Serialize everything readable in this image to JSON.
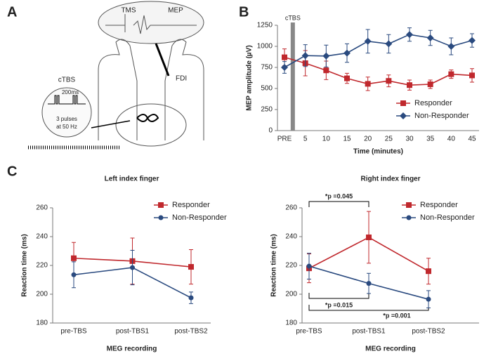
{
  "panel_labels": [
    "A",
    "B",
    "C"
  ],
  "diagram": {
    "tms": "TMS",
    "mep": "MEP",
    "fdi": "FDI",
    "ctbs": "cTBS",
    "interval": "200ms",
    "pulses": "3 pulses",
    "frequency": "at 50 Hz"
  },
  "chart_data": [
    {
      "type": "line",
      "annotations": [
        "cTBS"
      ],
      "x_label": "Time (minutes)",
      "y_label": "MEP amplitude (µV)",
      "categories": [
        "PRE",
        "5",
        "10",
        "15",
        "20",
        "25",
        "30",
        "35",
        "40",
        "45"
      ],
      "ylim": [
        0,
        1250
      ],
      "yticks": [
        0,
        250,
        500,
        750,
        1000,
        1250
      ],
      "legend": "lower right",
      "series": [
        {
          "name": "Responder",
          "color": "#c0282d",
          "marker": "square",
          "values": [
            870,
            800,
            715,
            620,
            555,
            590,
            540,
            550,
            670,
            655
          ],
          "errors": [
            100,
            150,
            110,
            60,
            80,
            70,
            60,
            50,
            50,
            80
          ]
        },
        {
          "name": "Non-Responder",
          "color": "#2a4a7f",
          "marker": "diamond",
          "values": [
            750,
            890,
            885,
            920,
            1060,
            1030,
            1140,
            1100,
            1000,
            1070
          ],
          "errors": [
            70,
            130,
            130,
            110,
            140,
            110,
            80,
            90,
            100,
            80
          ]
        }
      ]
    },
    {
      "type": "line",
      "title": "Left index finger",
      "x_label": "MEG recording",
      "y_label": "Reaction time (ms)",
      "categories": [
        "pre-TBS",
        "post-TBS1",
        "post-TBS2"
      ],
      "ylim": [
        180,
        260
      ],
      "yticks": [
        180,
        200,
        220,
        240,
        260
      ],
      "legend": "upper right",
      "series": [
        {
          "name": "Responder",
          "color": "#c0282d",
          "marker": "square",
          "values": [
            225,
            223,
            219
          ],
          "errors": [
            11,
            16,
            12
          ]
        },
        {
          "name": "Non-Responder",
          "color": "#2a4a7f",
          "marker": "circle",
          "values": [
            213.5,
            218.5,
            197.5
          ],
          "errors": [
            9,
            12,
            4
          ]
        }
      ]
    },
    {
      "type": "line",
      "title": "Right index finger",
      "x_label": "MEG recording",
      "y_label": "Reaction time (ms)",
      "categories": [
        "pre-TBS",
        "post-TBS1",
        "post-TBS2"
      ],
      "ylim": [
        180,
        260
      ],
      "yticks": [
        180,
        200,
        220,
        240,
        260
      ],
      "legend": "upper right",
      "annotations": [
        "*p =0.045",
        "*p =0.015",
        "*p =0.001"
      ],
      "series": [
        {
          "name": "Responder",
          "color": "#c0282d",
          "marker": "square",
          "values": [
            218,
            239.5,
            216
          ],
          "errors": [
            10,
            18,
            9
          ]
        },
        {
          "name": "Non-Responder",
          "color": "#2a4a7f",
          "marker": "circle",
          "values": [
            219.5,
            207.5,
            196.5
          ],
          "errors": [
            9,
            7,
            6
          ]
        }
      ]
    }
  ]
}
